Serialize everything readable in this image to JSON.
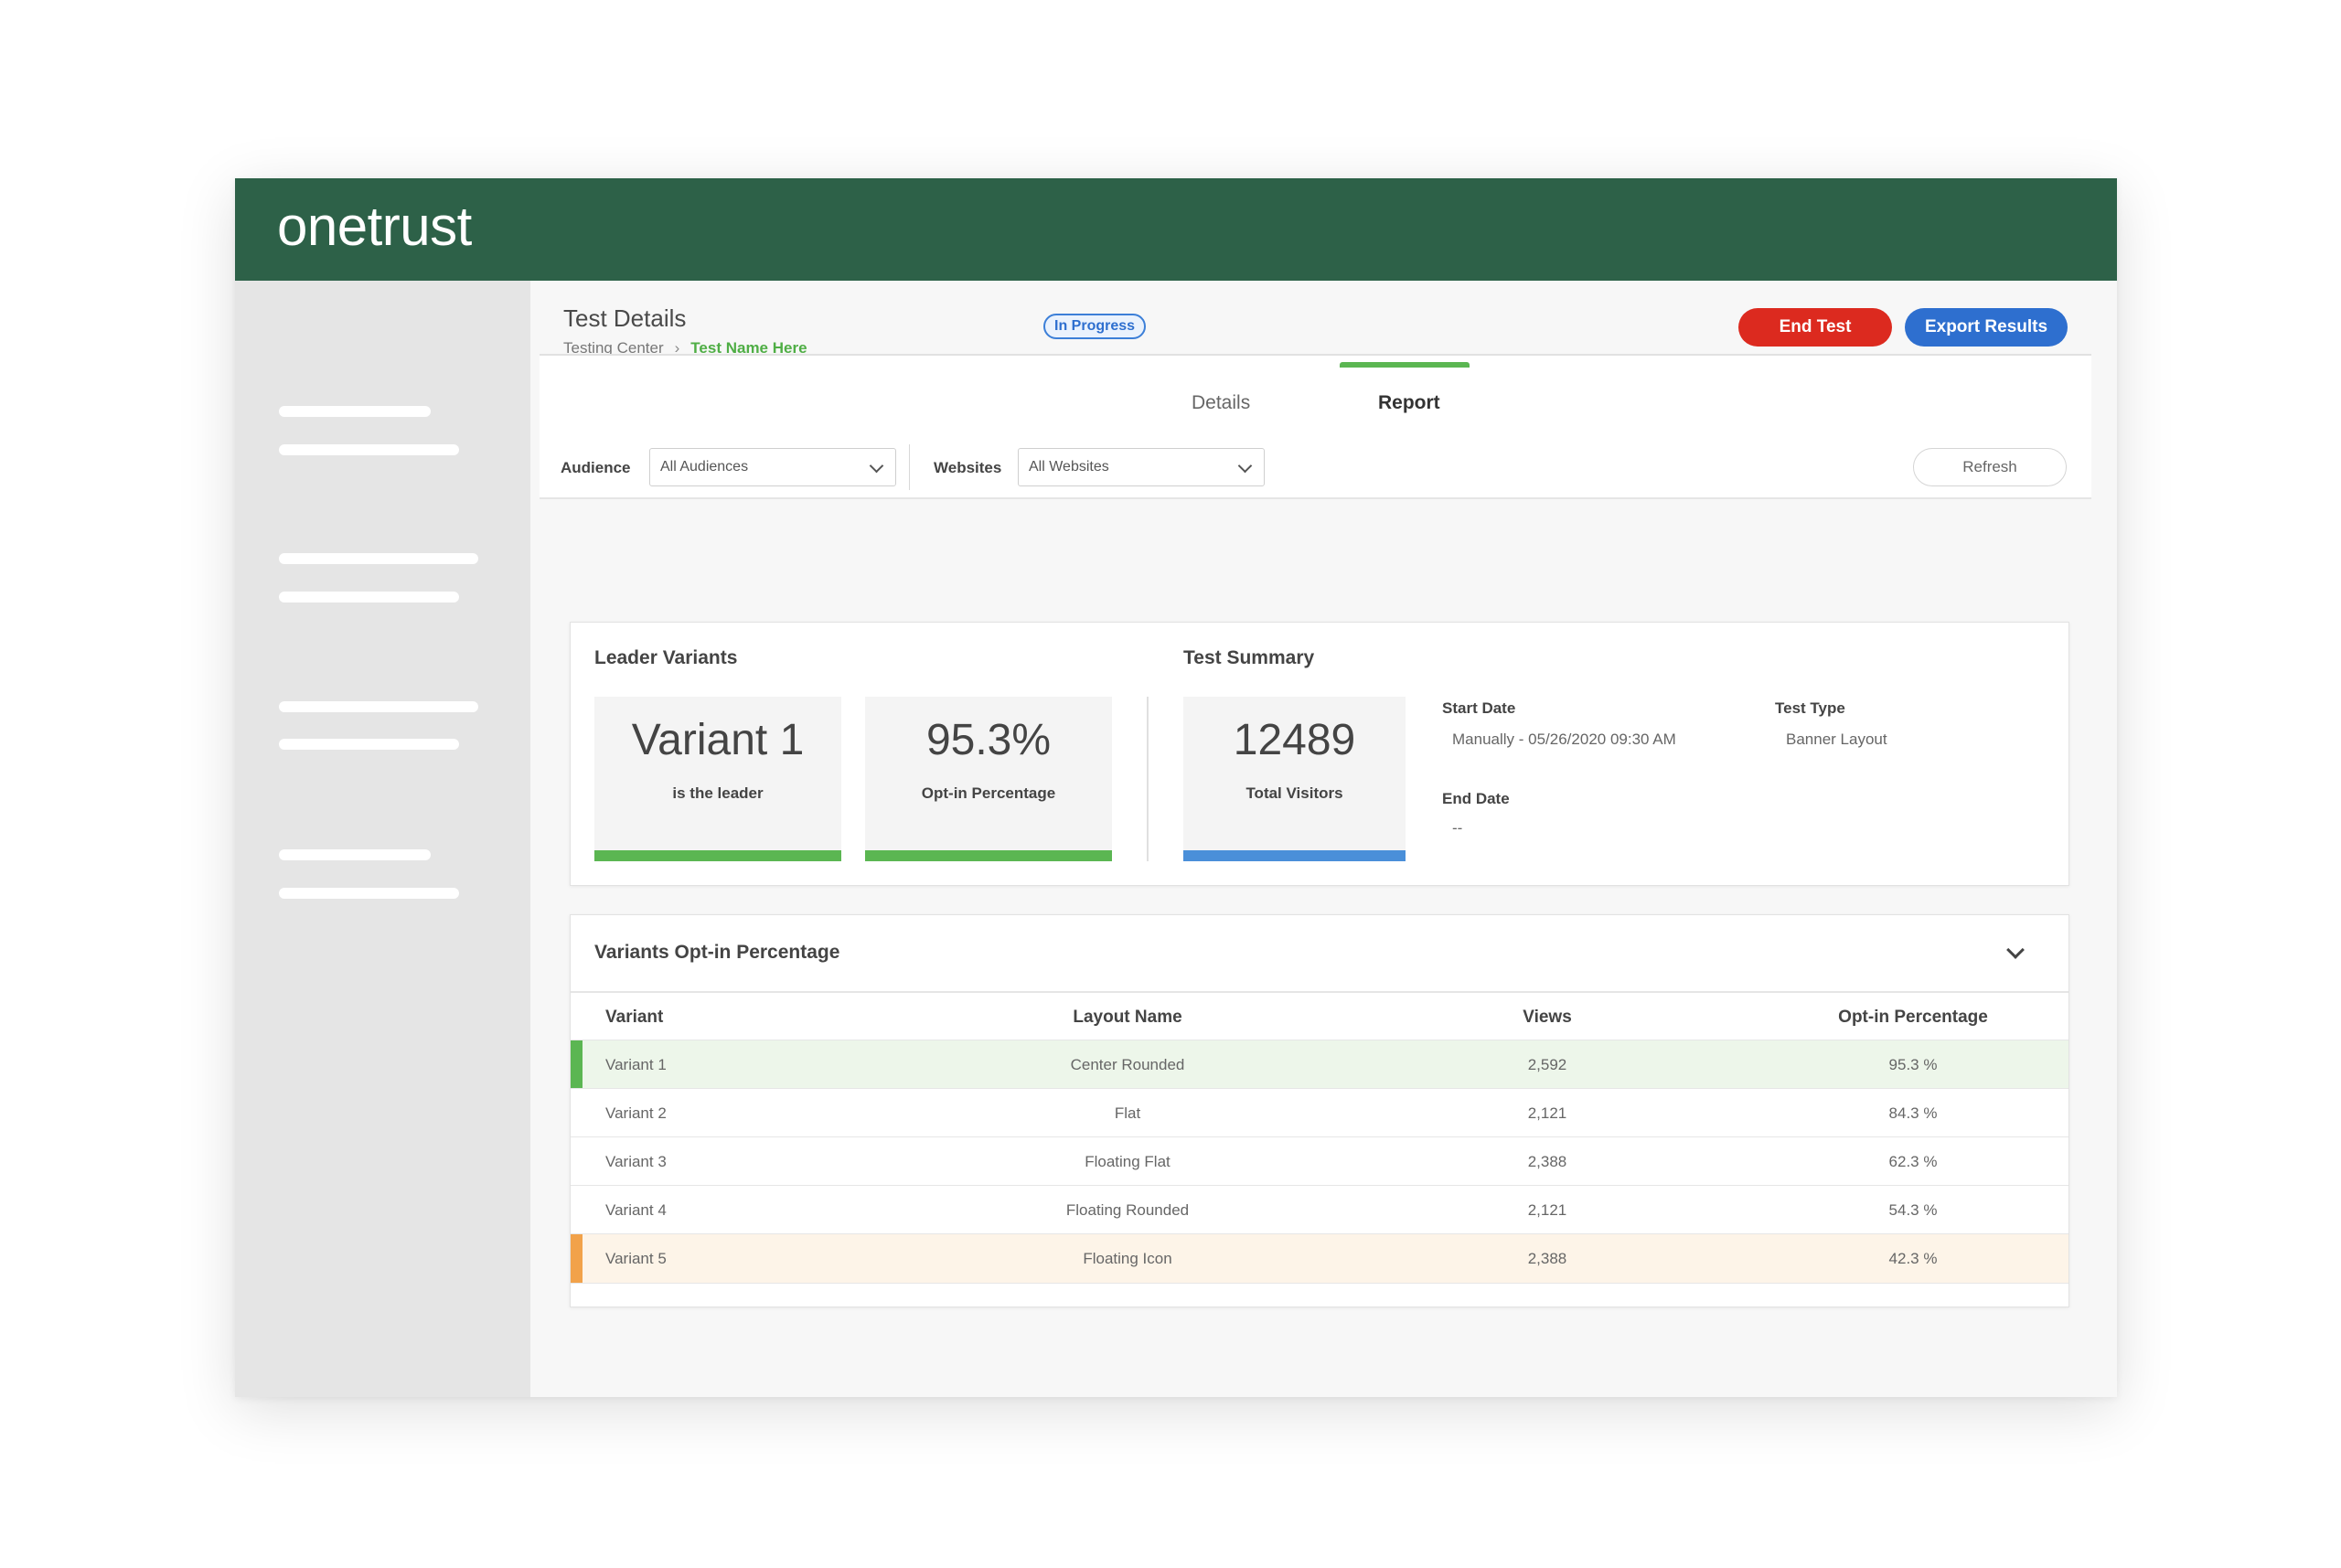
{
  "app": {
    "logo": "onetrust"
  },
  "header": {
    "title": "Test Details",
    "breadcrumb": {
      "parent": "Testing Center",
      "separator": "›",
      "current": "Test Name Here"
    },
    "status": "In Progress",
    "end_test_label": "End Test",
    "export_label": "Export Results"
  },
  "tabs": [
    {
      "label": "Details",
      "active": false
    },
    {
      "label": "Report",
      "active": true
    }
  ],
  "filters": {
    "audience_label": "Audience",
    "audience_value": "All Audiences",
    "websites_label": "Websites",
    "websites_value": "All Websites",
    "refresh_label": "Refresh"
  },
  "summary": {
    "leader_title": "Leader Variants",
    "leader_value": "Variant 1",
    "leader_caption": "is the leader",
    "optin_value": "95.3%",
    "optin_caption": "Opt-in Percentage",
    "test_summary_title": "Test Summary",
    "visitors_value": "12489",
    "visitors_caption": "Total Visitors",
    "start_date_label": "Start Date",
    "start_date_value": "Manually - 05/26/2020 09:30 AM",
    "end_date_label": "End Date",
    "end_date_value": "--",
    "test_type_label": "Test Type",
    "test_type_value": "Banner Layout"
  },
  "variants_table": {
    "title": "Variants Opt-in Percentage",
    "columns": [
      "Variant",
      "Layout Name",
      "Views",
      "Opt-in Percentage"
    ],
    "rows": [
      {
        "variant": "Variant 1",
        "layout": "Center Rounded",
        "views": "2,592",
        "optin": "95.3 %",
        "highlight": "leader"
      },
      {
        "variant": "Variant 2",
        "layout": "Flat",
        "views": "2,121",
        "optin": "84.3 %",
        "highlight": "none"
      },
      {
        "variant": "Variant 3",
        "layout": "Floating Flat",
        "views": "2,388",
        "optin": "62.3 %",
        "highlight": "none"
      },
      {
        "variant": "Variant 4",
        "layout": "Floating Rounded",
        "views": "2,121",
        "optin": "54.3 %",
        "highlight": "none"
      },
      {
        "variant": "Variant 5",
        "layout": "Floating Icon",
        "views": "2,388",
        "optin": "42.3 %",
        "highlight": "lowest"
      }
    ]
  },
  "colors": {
    "brand_green": "#2d6148",
    "accent_green": "#5bb652",
    "danger_red": "#dc2a1f",
    "primary_blue": "#2e6fcf",
    "leader_row_bg": "#edf6ea",
    "lowest_row_bg": "#fdf4e8",
    "lowest_marker": "#f2a24a"
  }
}
